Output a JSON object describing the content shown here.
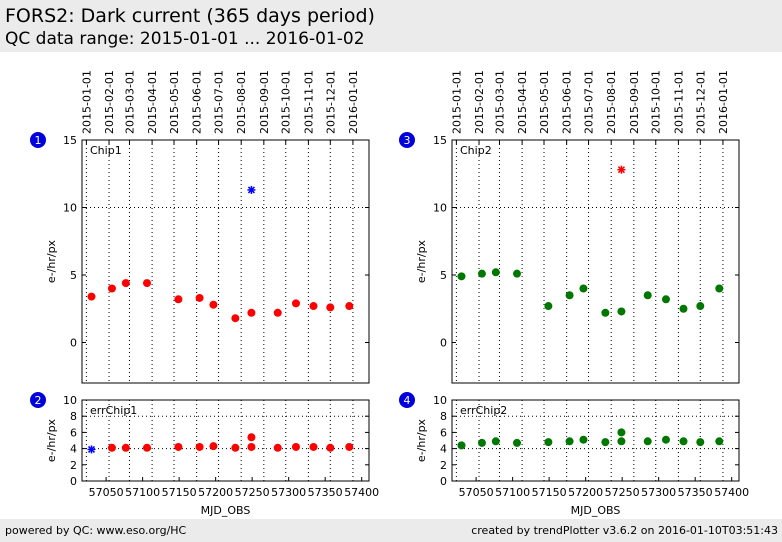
{
  "header": {
    "title": "FORS2: Dark current (365 days period)",
    "subtitle": "QC data range: 2015-01-01 ... 2016-01-02"
  },
  "footer": {
    "left": "powered by QC: www.eso.org/HC",
    "right": "created by trendPlotter v3.6.2 on 2016-01-10T03:51:43"
  },
  "colors": {
    "red": "#ff0000",
    "green": "#007700",
    "blue": "#0000ff",
    "header_bg": "#ebebeb"
  },
  "chart_data": [
    {
      "id": "1",
      "type": "scatter",
      "label": "Chip1",
      "ylabel": "e-/hr/px",
      "xlabel": "",
      "ylim": [
        -3,
        15
      ],
      "yticks": [
        0,
        5,
        10,
        15
      ],
      "xlim": [
        57017,
        57410
      ],
      "top_dates": [
        "2015-01-01",
        "2015-02-01",
        "2015-03-01",
        "2015-04-01",
        "2015-05-01",
        "2015-06-01",
        "2015-07-01",
        "2015-08-01",
        "2015-09-01",
        "2015-10-01",
        "2015-11-01",
        "2015-12-01",
        "2016-01-01"
      ],
      "top_mjd": [
        57023,
        57054,
        57082,
        57113,
        57143,
        57174,
        57204,
        57235,
        57266,
        57296,
        57327,
        57357,
        57388
      ],
      "hgrid": [
        10
      ],
      "series": [
        {
          "marker": "circle",
          "color": "#ff0000",
          "x": [
            57030,
            57058,
            57077,
            57106,
            57149,
            57178,
            57197,
            57227,
            57249,
            57285,
            57310,
            57334,
            57357,
            57383
          ],
          "y": [
            3.4,
            4.0,
            4.4,
            4.4,
            3.2,
            3.3,
            2.8,
            1.8,
            2.2,
            2.2,
            2.9,
            2.7,
            2.6,
            2.7
          ]
        },
        {
          "marker": "star",
          "color": "#0000ff",
          "x": [
            57249
          ],
          "y": [
            11.3
          ]
        }
      ]
    },
    {
      "id": "2",
      "type": "scatter",
      "label": "errChip1",
      "ylabel": "e-/hr/px",
      "xlabel": "MJD_OBS",
      "ylim": [
        0,
        10
      ],
      "yticks": [
        0,
        2,
        4,
        6,
        8,
        10
      ],
      "xlim": [
        57017,
        57410
      ],
      "xticks": [
        57050,
        57100,
        57150,
        57200,
        57250,
        57300,
        57350,
        57400
      ],
      "hgrid": [
        4,
        8
      ],
      "series": [
        {
          "marker": "circle",
          "color": "#ff0000",
          "x": [
            57058,
            57077,
            57106,
            57149,
            57178,
            57197,
            57227,
            57249,
            57249,
            57285,
            57310,
            57334,
            57357,
            57383
          ],
          "y": [
            4.1,
            4.1,
            4.1,
            4.2,
            4.2,
            4.3,
            4.1,
            5.4,
            4.2,
            4.1,
            4.2,
            4.2,
            4.1,
            4.2
          ]
        },
        {
          "marker": "star",
          "color": "#0000ff",
          "x": [
            57030
          ],
          "y": [
            3.9
          ]
        }
      ]
    },
    {
      "id": "3",
      "type": "scatter",
      "label": "Chip2",
      "ylabel": "e-/hr/px",
      "xlabel": "",
      "ylim": [
        -3,
        15
      ],
      "yticks": [
        0,
        5,
        10,
        15
      ],
      "xlim": [
        57017,
        57410
      ],
      "top_dates": [
        "2015-01-01",
        "2015-02-01",
        "2015-03-01",
        "2015-04-01",
        "2015-05-01",
        "2015-06-01",
        "2015-07-01",
        "2015-08-01",
        "2015-09-01",
        "2015-10-01",
        "2015-11-01",
        "2015-12-01",
        "2016-01-01"
      ],
      "top_mjd": [
        57023,
        57054,
        57082,
        57113,
        57143,
        57174,
        57204,
        57235,
        57266,
        57296,
        57327,
        57357,
        57388
      ],
      "hgrid": [
        10
      ],
      "series": [
        {
          "marker": "circle",
          "color": "#007700",
          "x": [
            57030,
            57058,
            57077,
            57106,
            57149,
            57178,
            57197,
            57227,
            57249,
            57285,
            57310,
            57334,
            57357,
            57383
          ],
          "y": [
            4.9,
            5.1,
            5.2,
            5.1,
            2.7,
            3.5,
            4.0,
            2.2,
            2.3,
            3.5,
            3.2,
            2.5,
            2.7,
            4.0
          ]
        },
        {
          "marker": "star",
          "color": "#ff0000",
          "x": [
            57249
          ],
          "y": [
            12.8
          ]
        }
      ]
    },
    {
      "id": "4",
      "type": "scatter",
      "label": "errChip2",
      "ylabel": "e-/hr/px",
      "xlabel": "MJD_OBS",
      "ylim": [
        0,
        10
      ],
      "yticks": [
        0,
        2,
        4,
        6,
        8,
        10
      ],
      "xlim": [
        57017,
        57410
      ],
      "xticks": [
        57050,
        57100,
        57150,
        57200,
        57250,
        57300,
        57350,
        57400
      ],
      "hgrid": [
        4,
        8
      ],
      "series": [
        {
          "marker": "circle",
          "color": "#007700",
          "x": [
            57030,
            57058,
            57077,
            57106,
            57149,
            57178,
            57197,
            57227,
            57249,
            57249,
            57285,
            57310,
            57334,
            57357,
            57383
          ],
          "y": [
            4.4,
            4.7,
            4.9,
            4.7,
            4.8,
            4.9,
            5.1,
            4.8,
            4.9,
            6.0,
            4.9,
            5.1,
            4.9,
            4.8,
            4.9
          ]
        }
      ]
    }
  ]
}
